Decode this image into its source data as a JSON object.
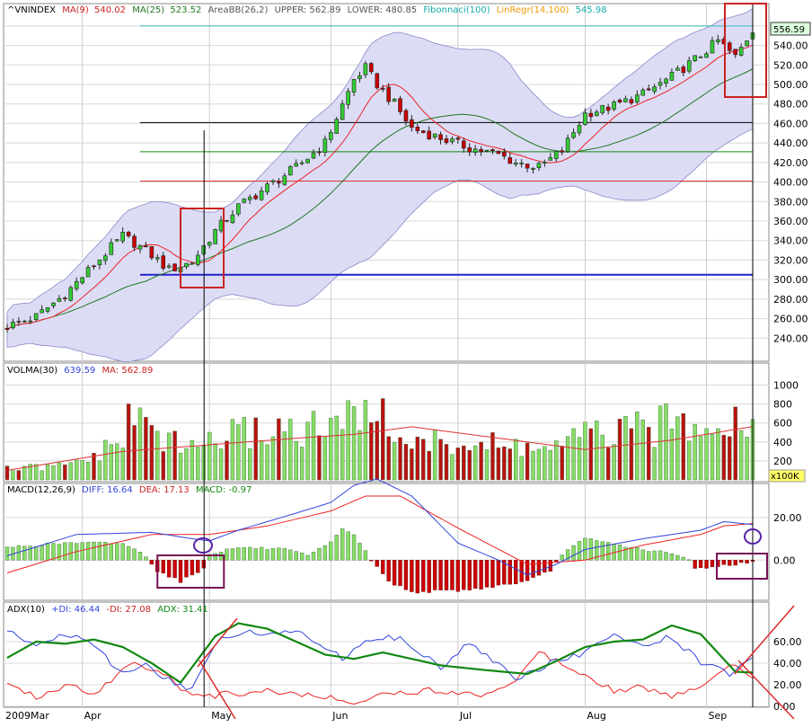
{
  "colors": {
    "up_candle": "#33cc33",
    "down_candle": "#cc0000",
    "bollinger_fill": "#dcdcf5",
    "ma9": "#ee2222",
    "ma25": "#227722",
    "volume_up": "#88dd66",
    "volume_down": "#bb1111",
    "macd_diff": "#3344dd",
    "macd_dea": "#ee2222",
    "adx": "#118811",
    "plus_di": "#3344dd",
    "minus_di": "#ee2222",
    "highlight": "#cc2222",
    "highlight_macd": "#771155",
    "price_label_bg": "#ddffdd",
    "vol_unit_bg": "#ffff66"
  },
  "header": {
    "symbol": "^VNINDEX",
    "ma9_label": "MA(9)",
    "ma9_value": "540.02",
    "ma25_label": "MA(25)",
    "ma25_value": "523.52",
    "bb_label": "AreaBB(26,2)",
    "upper_label": "UPPER:",
    "upper_value": "562.89",
    "lower_label": "LOWER:",
    "lower_value": "480.85",
    "fib_label": "Fibonnaci(100)",
    "linreg_label": "LinRegr(14,100)",
    "linreg_value": "545.98"
  },
  "price_label": "556.59",
  "vol_header": {
    "label": "VOLMA(30)",
    "value": "639.59",
    "ma_label": "MA:",
    "ma_value": "562.89",
    "unit": "x100K"
  },
  "macd_header": {
    "label": "MACD(12,26,9)",
    "diff_label": "DIFF:",
    "diff_value": "16.64",
    "dea_label": "DEA:",
    "dea_value": "17.13",
    "macd_label": "MACD:",
    "macd_value": "-0.97"
  },
  "adx_header": {
    "label": "ADX(10)",
    "pdi_label": "+DI:",
    "pdi_value": "46.44",
    "mdi_label": "-DI:",
    "mdi_value": "27.08",
    "adx_label": "ADX:",
    "adx_value": "31.41"
  },
  "chart_data": {
    "type": "candlestick",
    "x_labels": [
      "2009Mar",
      "Apr",
      "May",
      "Jun",
      "Jul",
      "Aug",
      "Sep"
    ],
    "x_label_bars": [
      0,
      13,
      35,
      56,
      78,
      100,
      121
    ],
    "bar_count": 130,
    "price_axis": {
      "min": 220,
      "max": 570,
      "ticks": [
        240,
        260,
        280,
        300,
        320,
        340,
        360,
        380,
        400,
        420,
        440,
        460,
        480,
        500,
        520,
        540,
        560
      ]
    },
    "horizontal_levels": [
      {
        "value": 560,
        "color": "#33bbbb"
      },
      {
        "value": 461,
        "color": "#000000"
      },
      {
        "value": 431,
        "color": "#118811"
      },
      {
        "value": 401,
        "color": "#dd3333"
      },
      {
        "value": 305,
        "color": "#2222cc"
      }
    ],
    "close_path": [
      [
        0,
        252
      ],
      [
        5,
        262
      ],
      [
        10,
        285
      ],
      [
        15,
        315
      ],
      [
        20,
        345
      ],
      [
        24,
        330
      ],
      [
        28,
        310
      ],
      [
        32,
        318
      ],
      [
        36,
        350
      ],
      [
        40,
        375
      ],
      [
        45,
        395
      ],
      [
        50,
        415
      ],
      [
        55,
        440
      ],
      [
        60,
        505
      ],
      [
        62,
        517
      ],
      [
        64,
        500
      ],
      [
        67,
        480
      ],
      [
        70,
        455
      ],
      [
        75,
        445
      ],
      [
        80,
        435
      ],
      [
        85,
        428
      ],
      [
        88,
        420
      ],
      [
        92,
        415
      ],
      [
        96,
        432
      ],
      [
        100,
        470
      ],
      [
        105,
        478
      ],
      [
        110,
        490
      ],
      [
        115,
        508
      ],
      [
        120,
        530
      ],
      [
        123,
        545
      ],
      [
        126,
        528
      ],
      [
        129,
        556
      ]
    ],
    "volume_axis": {
      "min": 0,
      "max": 1100,
      "ticks": [
        200,
        400,
        600,
        800,
        1000
      ],
      "unit": "x100K"
    },
    "volume_profile": [
      [
        0,
        120
      ],
      [
        10,
        150
      ],
      [
        18,
        350
      ],
      [
        22,
        730
      ],
      [
        30,
        350
      ],
      [
        35,
        440
      ],
      [
        40,
        520
      ],
      [
        48,
        600
      ],
      [
        54,
        560
      ],
      [
        60,
        680
      ],
      [
        62,
        1000
      ],
      [
        66,
        560
      ],
      [
        72,
        400
      ],
      [
        78,
        420
      ],
      [
        85,
        380
      ],
      [
        95,
        360
      ],
      [
        100,
        500
      ],
      [
        110,
        560
      ],
      [
        120,
        740
      ],
      [
        125,
        700
      ],
      [
        129,
        639
      ]
    ],
    "volume_ma": [
      [
        0,
        100
      ],
      [
        20,
        300
      ],
      [
        50,
        440
      ],
      [
        60,
        480
      ],
      [
        70,
        560
      ],
      [
        90,
        400
      ],
      [
        100,
        320
      ],
      [
        115,
        420
      ],
      [
        129,
        563
      ]
    ],
    "macd_axis": {
      "min": -18,
      "max": 30,
      "ticks": [
        0.0,
        20.0
      ]
    },
    "macd_diff": [
      [
        0,
        2
      ],
      [
        12,
        12
      ],
      [
        25,
        13
      ],
      [
        32,
        10
      ],
      [
        35,
        9
      ],
      [
        40,
        14
      ],
      [
        50,
        22
      ],
      [
        56,
        27
      ],
      [
        60,
        35
      ],
      [
        64,
        38
      ],
      [
        70,
        30
      ],
      [
        78,
        8
      ],
      [
        85,
        0
      ],
      [
        90,
        -7
      ],
      [
        95,
        -2
      ],
      [
        100,
        5
      ],
      [
        110,
        10
      ],
      [
        120,
        14
      ],
      [
        124,
        18
      ],
      [
        129,
        16.64
      ]
    ],
    "macd_dea": [
      [
        0,
        -6
      ],
      [
        12,
        4
      ],
      [
        25,
        12
      ],
      [
        32,
        12
      ],
      [
        35,
        12
      ],
      [
        45,
        16
      ],
      [
        56,
        23
      ],
      [
        62,
        30
      ],
      [
        68,
        30
      ],
      [
        78,
        15
      ],
      [
        90,
        -2
      ],
      [
        100,
        0
      ],
      [
        110,
        7
      ],
      [
        120,
        12
      ],
      [
        124,
        16
      ],
      [
        129,
        17.13
      ]
    ],
    "macd_hist": [
      [
        0,
        6
      ],
      [
        10,
        8
      ],
      [
        20,
        8
      ],
      [
        24,
        2
      ],
      [
        26,
        -5
      ],
      [
        30,
        -10
      ],
      [
        34,
        -4
      ],
      [
        35,
        3
      ],
      [
        40,
        6
      ],
      [
        48,
        5
      ],
      [
        52,
        2
      ],
      [
        56,
        8
      ],
      [
        58,
        15
      ],
      [
        60,
        12
      ],
      [
        63,
        0
      ],
      [
        66,
        -10
      ],
      [
        70,
        -15
      ],
      [
        80,
        -14
      ],
      [
        90,
        -10
      ],
      [
        94,
        -5
      ],
      [
        96,
        3
      ],
      [
        100,
        10
      ],
      [
        110,
        5
      ],
      [
        115,
        3
      ],
      [
        118,
        0
      ],
      [
        119,
        -4
      ],
      [
        129,
        -0.97
      ]
    ],
    "adx_axis": {
      "min": 0,
      "max": 85,
      "ticks": [
        0.0,
        20.0,
        40.0,
        60.0
      ]
    },
    "adx": [
      [
        0,
        45
      ],
      [
        5,
        60
      ],
      [
        10,
        58
      ],
      [
        15,
        62
      ],
      [
        20,
        55
      ],
      [
        25,
        40
      ],
      [
        30,
        22
      ],
      [
        36,
        65
      ],
      [
        40,
        77
      ],
      [
        45,
        72
      ],
      [
        50,
        60
      ],
      [
        55,
        48
      ],
      [
        60,
        44
      ],
      [
        65,
        50
      ],
      [
        70,
        44
      ],
      [
        75,
        38
      ],
      [
        82,
        34
      ],
      [
        90,
        30
      ],
      [
        95,
        42
      ],
      [
        100,
        55
      ],
      [
        105,
        60
      ],
      [
        110,
        62
      ],
      [
        115,
        75
      ],
      [
        120,
        67
      ],
      [
        126,
        32
      ],
      [
        129,
        31.41
      ]
    ],
    "plus_di": [
      [
        0,
        70
      ],
      [
        5,
        55
      ],
      [
        10,
        68
      ],
      [
        15,
        55
      ],
      [
        20,
        30
      ],
      [
        24,
        38
      ],
      [
        28,
        25
      ],
      [
        32,
        15
      ],
      [
        36,
        60
      ],
      [
        42,
        68
      ],
      [
        50,
        70
      ],
      [
        58,
        45
      ],
      [
        62,
        60
      ],
      [
        68,
        65
      ],
      [
        75,
        35
      ],
      [
        80,
        60
      ],
      [
        88,
        25
      ],
      [
        94,
        40
      ],
      [
        100,
        50
      ],
      [
        105,
        65
      ],
      [
        110,
        55
      ],
      [
        115,
        65
      ],
      [
        120,
        40
      ],
      [
        125,
        30
      ],
      [
        129,
        46.44
      ]
    ],
    "minus_di": [
      [
        0,
        20
      ],
      [
        5,
        8
      ],
      [
        10,
        20
      ],
      [
        15,
        12
      ],
      [
        22,
        42
      ],
      [
        28,
        28
      ],
      [
        32,
        8
      ],
      [
        36,
        10
      ],
      [
        45,
        15
      ],
      [
        55,
        8
      ],
      [
        60,
        5
      ],
      [
        66,
        12
      ],
      [
        75,
        15
      ],
      [
        82,
        10
      ],
      [
        88,
        25
      ],
      [
        92,
        50
      ],
      [
        100,
        30
      ],
      [
        105,
        15
      ],
      [
        110,
        18
      ],
      [
        115,
        8
      ],
      [
        120,
        20
      ],
      [
        126,
        40
      ],
      [
        129,
        27.08
      ]
    ]
  }
}
